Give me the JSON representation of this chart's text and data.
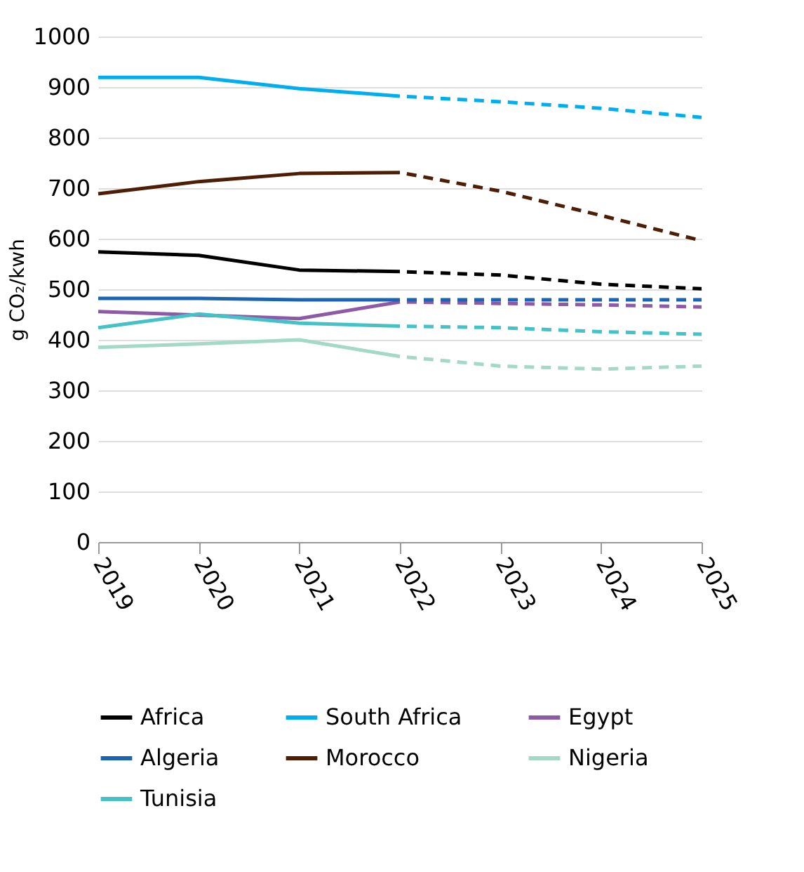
{
  "chart_data": {
    "type": "line",
    "ylabel": "g CO₂/kwh",
    "x": [
      2019,
      2020,
      2021,
      2022
    ],
    "xlim": [
      2019,
      2025
    ],
    "xticks": [
      2019,
      2020,
      2021,
      2022,
      2023,
      2024,
      2025
    ],
    "ylim": [
      0,
      1000
    ],
    "yticks": [
      0,
      100,
      200,
      300,
      400,
      500,
      600,
      700,
      800,
      900,
      {
        "value": 1000,
        "label": "1000"
      }
    ],
    "grid": "y",
    "legend": "bottom",
    "line_style": "solid",
    "series": [
      {
        "name": "Africa",
        "color": "#000000",
        "values": [
          574,
          567,
          538,
          535
        ]
      },
      {
        "name": "South Africa",
        "color": "#00aeef",
        "values": [
          919,
          919,
          897,
          882
        ]
      },
      {
        "name": "Egypt",
        "color": "#8e5aa8",
        "values": [
          456,
          449,
          442,
          475
        ]
      },
      {
        "name": "Algeria",
        "color": "#1a64b0",
        "values": [
          482,
          482,
          479,
          479
        ]
      },
      {
        "name": "Morocco",
        "color": "#4d1e05",
        "values": [
          689,
          713,
          729,
          731
        ]
      },
      {
        "name": "Nigeria",
        "color": "#a3d9c6",
        "values": [
          385,
          392,
          400,
          367
        ]
      },
      {
        "name": "Tunisia",
        "color": "#45c2c7",
        "values": [
          424,
          451,
          433,
          427
        ]
      },
      {
        "color": "#000000",
        "x": [
          2022,
          2023,
          2024,
          2025
        ],
        "line_style": "dashed",
        "values": [
          535,
          528,
          510,
          501
        ]
      },
      {
        "color": "#00aeef",
        "x": [
          2022,
          2023,
          2024,
          2025
        ],
        "line_style": "dashed",
        "values": [
          882,
          871,
          858,
          840
        ]
      },
      {
        "color": "#8e5aa8",
        "x": [
          2022,
          2023,
          2024,
          2025
        ],
        "line_style": "dashed",
        "values": [
          475,
          472,
          469,
          465
        ]
      },
      {
        "color": "#1a64b0",
        "x": [
          2022,
          2023,
          2024,
          2025
        ],
        "line_style": "dashed",
        "values": [
          479,
          479,
          479,
          479
        ]
      },
      {
        "color": "#4d1e05",
        "x": [
          2022,
          2023,
          2024,
          2025
        ],
        "line_style": "dashed",
        "values": [
          731,
          694,
          646,
          596
        ]
      },
      {
        "color": "#a3d9c6",
        "x": [
          2022,
          2023,
          2024,
          2025
        ],
        "line_style": "dashed",
        "values": [
          367,
          348,
          342,
          348
        ]
      },
      {
        "color": "#45c2c7",
        "x": [
          2022,
          2023,
          2024,
          2025
        ],
        "line_style": "dashed",
        "values": [
          427,
          424,
          416,
          411
        ]
      }
    ]
  }
}
